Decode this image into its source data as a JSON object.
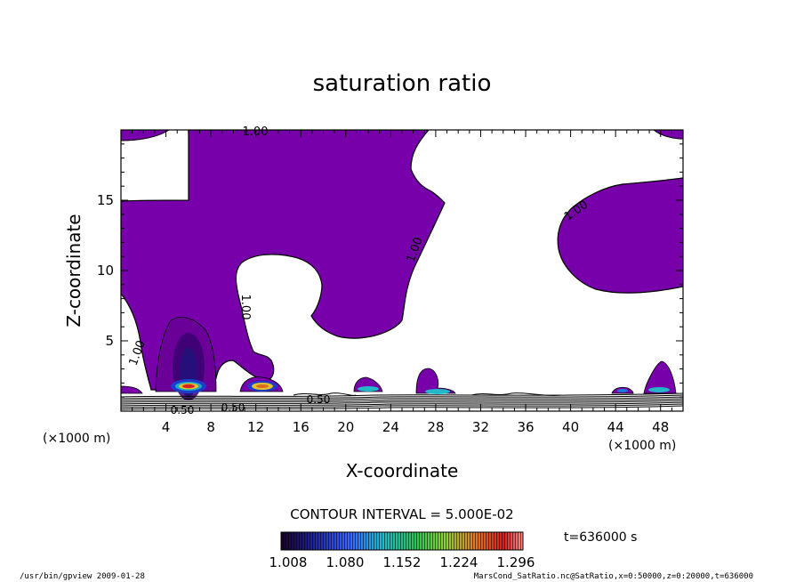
{
  "chart_data": {
    "type": "contour",
    "title": "saturation ratio",
    "xlabel": "X-coordinate",
    "ylabel": "Z-coordinate",
    "x_unit": "(×1000 m)",
    "xlim": [
      0,
      50
    ],
    "ylim": [
      0,
      20
    ],
    "x_ticks": [
      4,
      8,
      12,
      16,
      20,
      24,
      28,
      32,
      36,
      40,
      44,
      48
    ],
    "y_ticks": [
      5,
      10,
      15
    ],
    "contour_labels": [
      {
        "text": "1.00",
        "x": 12.5,
        "z": 19.8
      },
      {
        "text": "1.00",
        "x": 26.0,
        "z": 11.5
      },
      {
        "text": "1.00",
        "x": 41.0,
        "z": 14.3
      },
      {
        "text": "1.00",
        "x": 10.5,
        "z": 7.5
      },
      {
        "text": "1.00",
        "x": 2.0,
        "z": 4.0
      },
      {
        "text": "0.50",
        "x": 5.5,
        "z": 0.0
      },
      {
        "text": "0.50",
        "x": 10.0,
        "z": 0.3
      },
      {
        "text": "0.50",
        "x": 17.0,
        "z": 0.6
      }
    ],
    "contour_interval_text": "CONTOUR INTERVAL = 5.000E-02",
    "colorbar": {
      "min": 1.008,
      "max": 1.296,
      "tick_labels": [
        "1.008",
        "1.080",
        "1.152",
        "1.224",
        "1.296"
      ]
    },
    "fill_color_above_1": "#7700aa",
    "time_label": "t=636000 s"
  },
  "footer": {
    "left": "/usr/bin/gpview  2009-01-28",
    "right": "MarsCond_SatRatio.nc@SatRatio,x=0:50000,z=0:20000,t=636000"
  }
}
